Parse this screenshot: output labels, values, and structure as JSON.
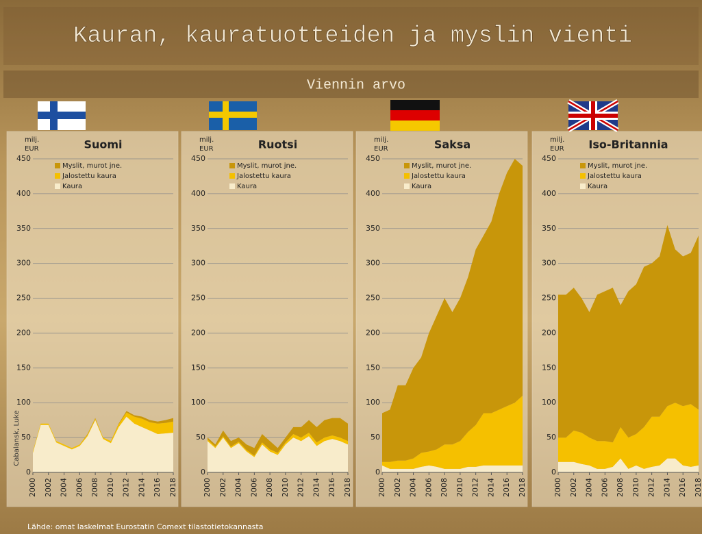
{
  "header": {
    "title": "Kauran, kauratuotteiden ja myslin vienti",
    "subtitle": "Viennin arvo"
  },
  "footer": {
    "source": "Lähde: omat laskelmat Eurostatin Comext tilastotietokannasta",
    "credit": "Cabalansk, Luke"
  },
  "chart_data": [
    {
      "type": "stacked_area",
      "title": "Suomi",
      "ylabel": "milj. EUR",
      "legend": "upper left",
      "x": [
        2000,
        2001,
        2002,
        2003,
        2004,
        2005,
        2006,
        2007,
        2008,
        2009,
        2010,
        2011,
        2012,
        2013,
        2014,
        2015,
        2016,
        2017,
        2018
      ],
      "xlim": [
        2000,
        2018
      ],
      "xticks": [
        2000,
        2002,
        2004,
        2006,
        2008,
        2010,
        2012,
        2014,
        2016,
        2018
      ],
      "ylim": [
        0,
        450
      ],
      "yticks": [
        0,
        50,
        100,
        150,
        200,
        250,
        300,
        350,
        400,
        450
      ],
      "grid": true,
      "series": [
        {
          "name": "Myslit, murot jne.",
          "color": "#c8960a",
          "values": [
            0,
            0,
            0,
            0,
            0,
            0,
            0,
            1,
            1,
            0,
            0,
            1,
            2,
            2,
            3,
            3,
            3,
            4,
            5
          ]
        },
        {
          "name": "Jalostettu kaura",
          "color": "#f5c000",
          "values": [
            2,
            2,
            2,
            2,
            2,
            2,
            2,
            2,
            2,
            2,
            3,
            4,
            6,
            10,
            12,
            12,
            15,
            15,
            16
          ]
        },
        {
          "name": "Kaura",
          "color": "#f8eccb",
          "values": [
            28,
            68,
            68,
            43,
            38,
            33,
            38,
            52,
            75,
            48,
            42,
            65,
            80,
            70,
            65,
            60,
            55,
            56,
            57
          ]
        }
      ]
    },
    {
      "type": "stacked_area",
      "title": "Ruotsi",
      "ylabel": "milj. EUR",
      "legend": "upper left",
      "x": [
        2000,
        2001,
        2002,
        2003,
        2004,
        2005,
        2006,
        2007,
        2008,
        2009,
        2010,
        2011,
        2012,
        2013,
        2014,
        2015,
        2016,
        2017,
        2018
      ],
      "xlim": [
        2000,
        2018
      ],
      "xticks": [
        2000,
        2002,
        2004,
        2006,
        2008,
        2010,
        2012,
        2014,
        2016,
        2018
      ],
      "ylim": [
        0,
        450
      ],
      "yticks": [
        0,
        50,
        100,
        150,
        200,
        250,
        300,
        350,
        400,
        450
      ],
      "grid": true,
      "series": [
        {
          "name": "Myslit, murot jne.",
          "color": "#c8960a",
          "values": [
            3,
            3,
            8,
            8,
            6,
            8,
            11,
            12,
            12,
            7,
            7,
            10,
            15,
            18,
            22,
            25,
            25,
            28,
            25
          ]
        },
        {
          "name": "Jalostettu kaura",
          "color": "#f5c000",
          "values": [
            2,
            2,
            2,
            2,
            2,
            2,
            2,
            3,
            3,
            3,
            3,
            5,
            5,
            5,
            5,
            5,
            5,
            5,
            5
          ]
        },
        {
          "name": "Kaura",
          "color": "#f8eccb",
          "values": [
            45,
            35,
            50,
            35,
            42,
            30,
            22,
            40,
            30,
            25,
            40,
            50,
            45,
            52,
            38,
            45,
            48,
            45,
            40
          ]
        }
      ]
    },
    {
      "type": "stacked_area",
      "title": "Saksa",
      "ylabel": "milj. EUR",
      "legend": "upper left",
      "x": [
        2000,
        2001,
        2002,
        2003,
        2004,
        2005,
        2006,
        2007,
        2008,
        2009,
        2010,
        2011,
        2012,
        2013,
        2014,
        2015,
        2016,
        2017,
        2018
      ],
      "xlim": [
        2000,
        2018
      ],
      "xticks": [
        2000,
        2002,
        2004,
        2006,
        2008,
        2010,
        2012,
        2014,
        2016,
        2018
      ],
      "ylim": [
        0,
        450
      ],
      "yticks": [
        0,
        50,
        100,
        150,
        200,
        250,
        300,
        350,
        400,
        450
      ],
      "grid": true,
      "series": [
        {
          "name": "Myslit, murot jne.",
          "color": "#c8960a",
          "values": [
            70,
            75,
            108,
            108,
            130,
            137,
            170,
            192,
            210,
            190,
            205,
            222,
            252,
            255,
            275,
            310,
            335,
            350,
            330
          ]
        },
        {
          "name": "Jalostettu kaura",
          "color": "#f5c000",
          "values": [
            5,
            10,
            12,
            12,
            15,
            20,
            20,
            25,
            35,
            35,
            40,
            50,
            60,
            75,
            75,
            80,
            85,
            90,
            100
          ]
        },
        {
          "name": "Kaura",
          "color": "#f8eccb",
          "values": [
            10,
            5,
            5,
            5,
            5,
            8,
            10,
            8,
            5,
            5,
            5,
            8,
            8,
            10,
            10,
            10,
            10,
            10,
            10
          ]
        }
      ]
    },
    {
      "type": "stacked_area",
      "title": "Iso-Britannia",
      "ylabel": "milj. EUR",
      "legend": "upper left",
      "x": [
        2000,
        2001,
        2002,
        2003,
        2004,
        2005,
        2006,
        2007,
        2008,
        2009,
        2010,
        2011,
        2012,
        2013,
        2014,
        2015,
        2016,
        2017,
        2018
      ],
      "xlim": [
        2000,
        2018
      ],
      "xticks": [
        2000,
        2002,
        2004,
        2006,
        2008,
        2010,
        2012,
        2014,
        2016,
        2018
      ],
      "ylim": [
        0,
        450
      ],
      "yticks": [
        0,
        50,
        100,
        150,
        200,
        250,
        300,
        350,
        400,
        450
      ],
      "grid": true,
      "series": [
        {
          "name": "Myslit, murot jne.",
          "color": "#c8960a",
          "values": [
            205,
            205,
            205,
            193,
            180,
            210,
            215,
            222,
            175,
            210,
            215,
            230,
            220,
            230,
            260,
            220,
            215,
            217,
            250
          ]
        },
        {
          "name": "Jalostettu kaura",
          "color": "#f5c000",
          "values": [
            35,
            35,
            45,
            45,
            40,
            40,
            40,
            35,
            45,
            45,
            45,
            60,
            72,
            70,
            75,
            80,
            85,
            90,
            80
          ]
        },
        {
          "name": "Kaura",
          "color": "#f8eccb",
          "values": [
            15,
            15,
            15,
            12,
            10,
            5,
            5,
            8,
            20,
            5,
            10,
            5,
            8,
            10,
            20,
            20,
            10,
            8,
            10
          ]
        }
      ]
    }
  ]
}
